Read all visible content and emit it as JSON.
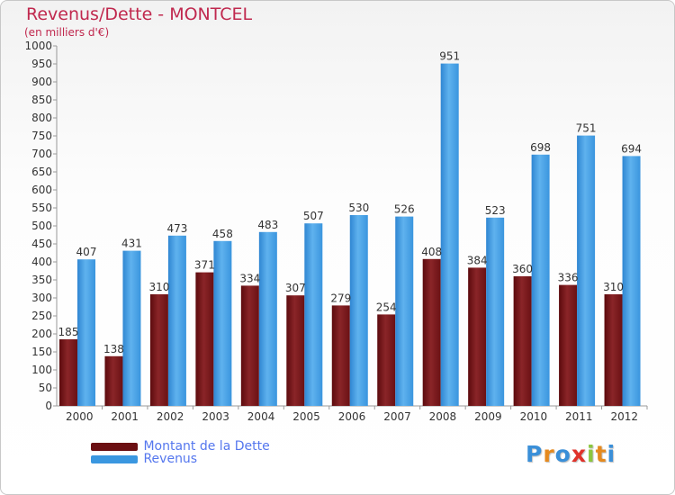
{
  "title": "Revenus/Dette - MONTCEL",
  "subtitle": "(en milliers d'€)",
  "logo": {
    "text": "Proxiti",
    "icon": "proxiti-logo"
  },
  "colors": {
    "debt": "#7a1a1d",
    "debt_light": "#a5393c",
    "revenue": "#3a97e0",
    "revenue_light": "#64b6f0",
    "title": "#c0284e",
    "legend_text": "#5577ee"
  },
  "legend": [
    {
      "label": "Montant de la Dette",
      "color": "#6b0f12"
    },
    {
      "label": "Revenus",
      "color": "#3a97e0"
    }
  ],
  "chart_data": {
    "type": "bar",
    "title": "Revenus/Dette - MONTCEL",
    "subtitle": "(en milliers d'€)",
    "xlabel": "",
    "ylabel": "",
    "ylim": [
      0,
      1000
    ],
    "ytick_step": 50,
    "grid": false,
    "legend_position": "bottom-left",
    "categories": [
      "2000",
      "2001",
      "2002",
      "2003",
      "2004",
      "2005",
      "2006",
      "2007",
      "2008",
      "2009",
      "2010",
      "2011",
      "2012"
    ],
    "series": [
      {
        "name": "Montant de la Dette",
        "values": [
          185,
          138,
          310,
          371,
          334,
          307,
          279,
          254,
          408,
          384,
          360,
          336,
          310
        ]
      },
      {
        "name": "Revenus",
        "values": [
          407,
          431,
          473,
          458,
          483,
          507,
          530,
          526,
          951,
          523,
          698,
          751,
          694
        ]
      }
    ]
  }
}
